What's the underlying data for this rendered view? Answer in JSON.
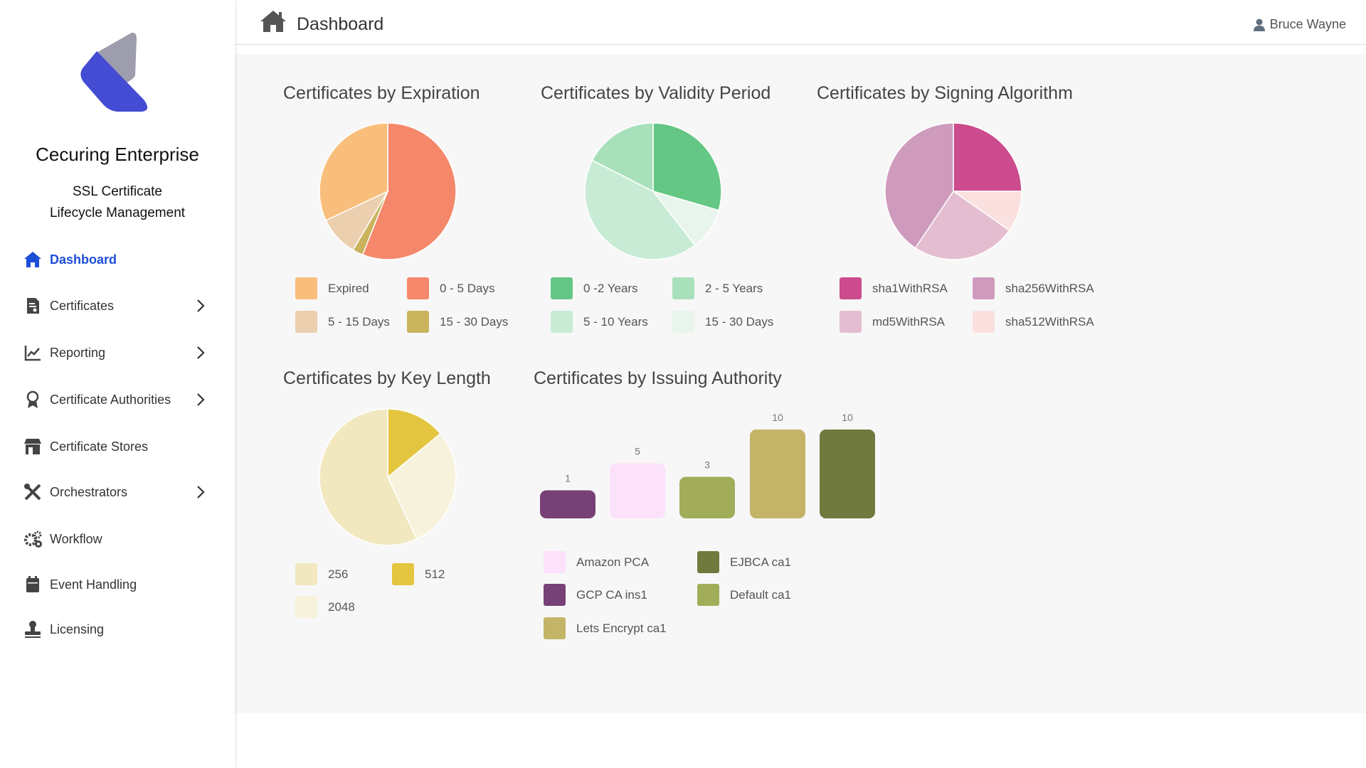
{
  "sidebar": {
    "brand": "Cecuring Enterprise",
    "subtitle_line1": "SSL Certificate",
    "subtitle_line2": "Lifecycle Management",
    "items": [
      {
        "label": "Dashboard",
        "icon": "home-icon",
        "active": true,
        "chevron": false
      },
      {
        "label": "Certificates",
        "icon": "certificate-file-icon",
        "chevron": true
      },
      {
        "label": "Reporting",
        "icon": "line-chart-icon",
        "chevron": true
      },
      {
        "label": "Certificate Authorities",
        "icon": "award-icon",
        "chevron": true
      },
      {
        "label": "Certificate Stores",
        "icon": "store-icon",
        "chevron": false
      },
      {
        "label": "Orchestrators",
        "icon": "tools-icon",
        "chevron": true
      },
      {
        "label": "Workflow",
        "icon": "gears-icon",
        "chevron": false
      },
      {
        "label": "Event Handling",
        "icon": "calendar-icon",
        "chevron": false
      },
      {
        "label": "Licensing",
        "icon": "stamp-icon",
        "chevron": false
      }
    ]
  },
  "header": {
    "title": "Dashboard",
    "user": "Bruce Wayne"
  },
  "colors": {
    "accent": "#1d4ed8",
    "logo_blue": "#434cd2",
    "logo_grey": "#9e9dae"
  },
  "chart_data": [
    {
      "type": "pie",
      "title": "Certificates by Expiration",
      "unit": "percent (estimated)",
      "slices": [
        {
          "label": "0 - 5 Days",
          "value": 56,
          "color": "#f5876a"
        },
        {
          "label": "15 - 30 Days",
          "value": 2.5,
          "color": "#c9b35d"
        },
        {
          "label": "5 - 15 Days",
          "value": 9.5,
          "color": "#ebcfae"
        },
        {
          "label": "Expired",
          "value": 32,
          "color": "#f9be7b"
        }
      ],
      "legend": [
        "Expired",
        "0 - 5 Days",
        "5 - 15 Days",
        "15 - 30 Days"
      ]
    },
    {
      "type": "pie",
      "title": "Certificates by Validity Period",
      "unit": "percent (estimated)",
      "slices": [
        {
          "label": "0 -2 Years",
          "value": 29.5,
          "color": "#65c785"
        },
        {
          "label": "15 - 30 Days",
          "value": 10,
          "color": "#e8f5ec"
        },
        {
          "label": "5 - 10 Years",
          "value": 43,
          "color": "#c8ebd5"
        },
        {
          "label": "2 - 5 Years",
          "value": 17.5,
          "color": "#a8e0bb"
        }
      ],
      "legend": [
        "0 -2 Years",
        "2 - 5 Years",
        "5 - 10 Years",
        "15 - 30 Days"
      ]
    },
    {
      "type": "pie",
      "title": "Certificates by Signing Algorithm",
      "unit": "percent (estimated)",
      "slices": [
        {
          "label": "sha1WithRSA",
          "value": 25,
          "color": "#cc4b8c"
        },
        {
          "label": "sha512WithRSA",
          "value": 9.7,
          "color": "#fbe0e0"
        },
        {
          "label": "md5WithRSA",
          "value": 24.7,
          "color": "#e4bed0"
        },
        {
          "label": "sha256WithRSA",
          "value": 40.6,
          "color": "#cf9bbd"
        }
      ],
      "legend": [
        "sha1WithRSA",
        "sha256WithRSA",
        "md5WithRSA",
        "sha512WithRSA"
      ]
    },
    {
      "type": "pie",
      "title": "Certificates by Key Length",
      "unit": "percent (estimated)",
      "slices": [
        {
          "label": "512",
          "value": 14,
          "color": "#e4c540"
        },
        {
          "label": "2048",
          "value": 29,
          "color": "#f7f2dc"
        },
        {
          "label": "256",
          "value": 57,
          "color": "#f2e8c0"
        }
      ],
      "legend": [
        "256",
        "512",
        "2048"
      ]
    },
    {
      "type": "bar",
      "title": "Certificates by Issuing Authority",
      "bars": [
        {
          "label": "GCP CA ins1",
          "value": 1,
          "color": "#764176"
        },
        {
          "label": "Amazon PCA",
          "value": 5,
          "color": "#fce1fb"
        },
        {
          "label": "Default ca1",
          "value": 3,
          "color": "#a2ad5a"
        },
        {
          "label": "Lets Encrypt ca1",
          "value": 10,
          "color": "#c4b468"
        },
        {
          "label": "EJBCA ca1",
          "value": 10,
          "color": "#717a3e"
        }
      ],
      "legend": [
        "Amazon PCA",
        "EJBCA ca1",
        "GCP CA ins1",
        "Default ca1",
        "Lets Encrypt ca1"
      ]
    }
  ]
}
